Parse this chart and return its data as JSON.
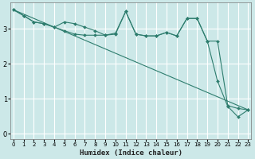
{
  "xlabel": "Humidex (Indice chaleur)",
  "bg_color": "#cce8e8",
  "grid_color": "#ffffff",
  "line_color": "#2e7d6e",
  "x_ticks": [
    0,
    1,
    2,
    3,
    4,
    5,
    6,
    7,
    8,
    9,
    10,
    11,
    12,
    13,
    14,
    15,
    16,
    17,
    18,
    19,
    20,
    21,
    22,
    23
  ],
  "y_ticks": [
    0,
    1,
    2,
    3
  ],
  "xlim": [
    -0.3,
    23.3
  ],
  "ylim": [
    -0.15,
    3.75
  ],
  "line1_x": [
    0,
    1,
    2,
    3,
    4,
    5,
    6,
    7,
    8,
    9,
    10,
    11,
    12,
    13,
    14,
    15,
    16,
    17,
    18,
    19,
    20,
    21,
    22,
    23
  ],
  "line1_y": [
    3.55,
    3.38,
    3.2,
    3.15,
    3.05,
    2.95,
    2.85,
    2.82,
    2.82,
    2.82,
    2.85,
    3.5,
    2.85,
    2.8,
    2.8,
    2.9,
    2.8,
    3.3,
    3.3,
    2.65,
    2.65,
    0.8,
    0.72,
    0.68
  ],
  "line2_x": [
    0,
    1,
    2,
    3,
    4,
    5,
    6,
    7,
    8,
    9,
    10,
    11,
    12,
    13,
    14,
    15,
    16,
    17,
    18,
    19,
    20,
    21,
    22,
    23
  ],
  "line2_y": [
    3.55,
    3.38,
    3.2,
    3.15,
    3.05,
    3.2,
    3.15,
    3.05,
    2.95,
    2.82,
    2.88,
    3.5,
    2.85,
    2.8,
    2.8,
    2.9,
    2.8,
    3.3,
    3.3,
    2.65,
    1.5,
    0.78,
    0.48,
    0.68
  ],
  "line3_x": [
    0,
    23
  ],
  "line3_y": [
    3.55,
    0.68
  ]
}
